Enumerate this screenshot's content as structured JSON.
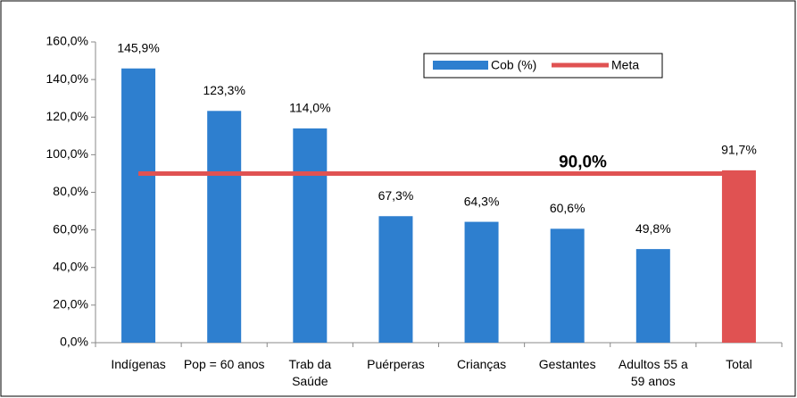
{
  "chart_data": {
    "type": "bar",
    "categories": [
      "Indígenas",
      "Pop = 60 anos",
      "Trab da Saúde",
      "Puérperas",
      "Crianças",
      "Gestantes",
      "Adultos 55 a 59 anos",
      "Total"
    ],
    "series": [
      {
        "name": "Cob (%)",
        "color": "#2e7fcf",
        "colors": [
          "#2e7fcf",
          "#2e7fcf",
          "#2e7fcf",
          "#2e7fcf",
          "#2e7fcf",
          "#2e7fcf",
          "#2e7fcf",
          "#e05252"
        ],
        "values": [
          145.9,
          123.3,
          114.0,
          67.3,
          64.3,
          60.6,
          49.8,
          91.7
        ],
        "value_labels": [
          "145,9%",
          "123,3%",
          "114,0%",
          "67,3%",
          "64,3%",
          "60,6%",
          "49,8%",
          "91,7%"
        ]
      }
    ],
    "meta": {
      "name": "Meta",
      "color": "#e05252",
      "value": 90.0,
      "value_label": "90,0%"
    },
    "ylim": [
      0,
      160
    ],
    "yticks": [
      {
        "value": 0,
        "label": "0,0%"
      },
      {
        "value": 20,
        "label": "20,0%"
      },
      {
        "value": 40,
        "label": "40,0%"
      },
      {
        "value": 60,
        "label": "60,0%"
      },
      {
        "value": 80,
        "label": "80,0%"
      },
      {
        "value": 100,
        "label": "100,0%"
      },
      {
        "value": 120,
        "label": "120,0%"
      },
      {
        "value": 140,
        "label": "140,0%"
      },
      {
        "value": 160,
        "label": "160,0%"
      }
    ],
    "grid": false
  }
}
